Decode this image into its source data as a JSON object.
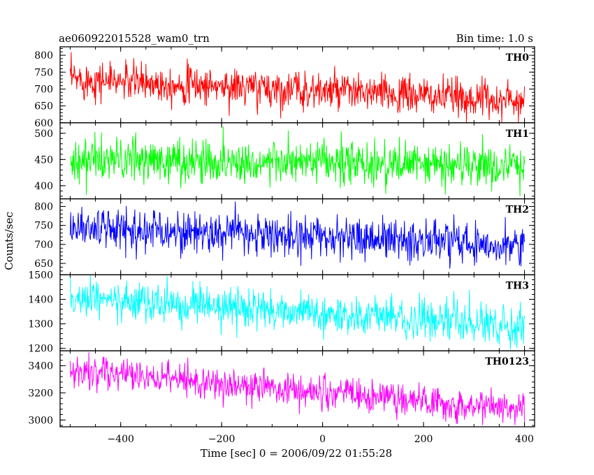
{
  "header": {
    "left_title": "ae060922015528_wam0_trn",
    "right_title": "Bin time: 1.0 s"
  },
  "chart_data": {
    "type": "line",
    "xlabel": "Time [sec] 0 = 2006/09/22 01:55:28",
    "ylabel": "Counts/sec",
    "xlim": [
      -520,
      420
    ],
    "x_ticks": [
      -400,
      -200,
      0,
      200,
      400
    ],
    "x_tick_labels": [
      "−400",
      "−200",
      "0",
      "200",
      "400"
    ],
    "data_x_range": [
      -500,
      400
    ],
    "bin_time_s": 1.0,
    "panels": [
      {
        "name": "TH0",
        "color": "#ff0000",
        "ylim": [
          600,
          825
        ],
        "y_ticks": [
          600,
          650,
          700,
          750,
          800
        ],
        "trend": {
          "start": 730,
          "end": 665
        },
        "noise_sd": 28,
        "range_observed": [
          600,
          825
        ]
      },
      {
        "name": "TH1",
        "color": "#00ff00",
        "ylim": [
          375,
          520
        ],
        "y_ticks": [
          400,
          450,
          500
        ],
        "trend": {
          "start": 450,
          "end": 437
        },
        "noise_sd": 21,
        "range_observed": [
          380,
          520
        ]
      },
      {
        "name": "TH2",
        "color": "#0000ff",
        "ylim": [
          620,
          820
        ],
        "y_ticks": [
          650,
          700,
          750,
          800
        ],
        "trend": {
          "start": 745,
          "end": 700
        },
        "noise_sd": 27,
        "range_observed": [
          620,
          820
        ]
      },
      {
        "name": "TH3",
        "color": "#00ffff",
        "ylim": [
          1190,
          1500
        ],
        "y_ticks": [
          1200,
          1300,
          1400,
          1500
        ],
        "trend": {
          "start": 1405,
          "end": 1290
        },
        "noise_sd": 38,
        "range_observed": [
          1195,
          1500
        ]
      },
      {
        "name": "TH0123",
        "color": "#ff00ff",
        "ylim": [
          2950,
          3510
        ],
        "y_ticks": [
          3000,
          3200,
          3400
        ],
        "trend": {
          "start": 3360,
          "end": 3080
        },
        "noise_sd": 60,
        "range_observed": [
          2960,
          3510
        ]
      }
    ]
  }
}
